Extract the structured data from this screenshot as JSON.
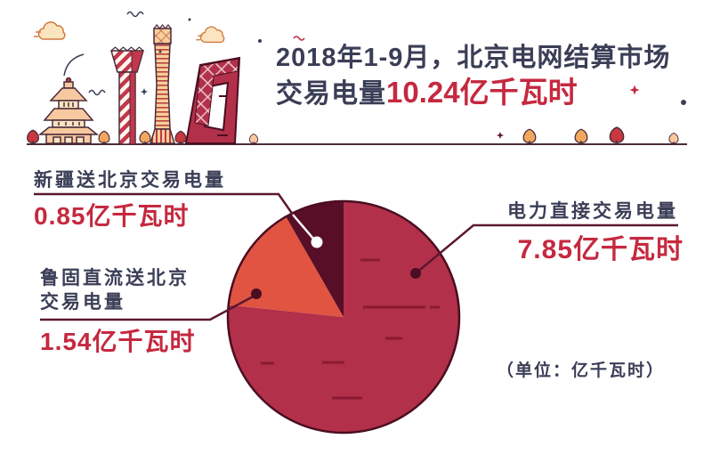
{
  "title": {
    "line1": "2018年1-9月，北京电网结算市场",
    "line2_prefix": "交易电量",
    "line2_value": "10.24亿千瓦时"
  },
  "unit_note": "（单位：亿千瓦时）",
  "chart_data": {
    "type": "pie",
    "title": "2018年1-9月，北京电网结算市场交易电量10.24亿千瓦时",
    "total_value": 10.24,
    "unit": "亿千瓦时",
    "start_angle_deg": 0,
    "direction": "clockwise",
    "legend_position": "callouts",
    "slices": [
      {
        "id": "direct-trade",
        "label": "电力直接交易电量",
        "value": 7.85,
        "value_label": "7.85亿千瓦时",
        "color": "#b23049"
      },
      {
        "id": "lugu-dc",
        "label": "鲁固直流送北京交易电量",
        "value": 1.54,
        "value_label": "1.54亿千瓦时",
        "color": "#e15441"
      },
      {
        "id": "xinjiang",
        "label": "新疆送北京交易电量",
        "value": 0.85,
        "value_label": "0.85亿千瓦时",
        "color": "#570e26"
      }
    ]
  },
  "callouts": {
    "lugu": {
      "title_line1": "鲁固直流送北京",
      "title_line2": "交易电量"
    }
  },
  "colors": {
    "navy": "#3a3e56",
    "red": "#c5293f",
    "pie_outline": "#4a0d22",
    "pie_dash": "#8a1a33",
    "leader_line": "#5c182e",
    "illustration_crimson": "#b23049",
    "illustration_peach": "#f8c9a0",
    "illustration_cream": "#fbe4c0",
    "illustration_orange": "#f2a75f"
  },
  "illustration": {
    "landmark_icons": [
      "temple-of-heaven-icon",
      "linglong-tower-icon",
      "china-zun-tower-icon",
      "cctv-building-icon"
    ],
    "decoration_icons": [
      "cloud-icon",
      "tree-icon",
      "sparkle-icon",
      "squiggle-icon",
      "ground-line"
    ]
  }
}
